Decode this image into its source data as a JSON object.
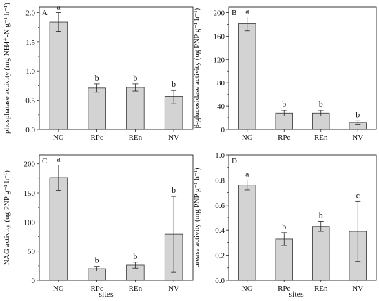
{
  "figure": {
    "shared_xlabel": "sites"
  },
  "chart_data": [
    {
      "panel": "A",
      "type": "bar",
      "categories": [
        "NG",
        "RPc",
        "REn",
        "NV"
      ],
      "values": [
        1.84,
        0.71,
        0.72,
        0.56
      ],
      "errors": [
        0.16,
        0.07,
        0.06,
        0.11
      ],
      "letters": [
        "a",
        "b",
        "b",
        "b"
      ],
      "ylabel": "phosphatase activity (mg NH4⁺-N g⁻¹ h⁻¹)",
      "ylim": [
        0,
        2.1
      ],
      "yticks": [
        0.0,
        0.5,
        1.0,
        1.5,
        2.0
      ],
      "ytick_labels": [
        "0.0",
        "0.5",
        "1.0",
        "1.5",
        "2.0"
      ],
      "xlabel": "",
      "bar_color": "#d3d3d3"
    },
    {
      "panel": "B",
      "type": "bar",
      "categories": [
        "NG",
        "RPc",
        "REn",
        "NV"
      ],
      "values": [
        181,
        28,
        28,
        12
      ],
      "errors": [
        12,
        5,
        5,
        3
      ],
      "letters": [
        "a",
        "b",
        "b",
        "b"
      ],
      "ylabel": "β-glucosidase activity (ug PNP g⁻¹ h⁻¹)",
      "ylim": [
        0,
        210
      ],
      "yticks": [
        0,
        40,
        80,
        120,
        160,
        200
      ],
      "ytick_labels": [
        "0",
        "40",
        "80",
        "120",
        "160",
        "200"
      ],
      "xlabel": "",
      "bar_color": "#d3d3d3"
    },
    {
      "panel": "C",
      "type": "bar",
      "categories": [
        "NG",
        "RPc",
        "REn",
        "NV"
      ],
      "values": [
        176,
        20,
        26,
        79
      ],
      "errors": [
        22,
        4,
        5,
        65
      ],
      "letters": [
        "a",
        "b",
        "b",
        "b"
      ],
      "ylabel": "NAG activity (ug PNP g⁻¹ h⁻¹)",
      "ylim": [
        0,
        215
      ],
      "yticks": [
        0,
        50,
        100,
        150,
        200
      ],
      "ytick_labels": [
        "0",
        "50",
        "100",
        "150",
        "200"
      ],
      "xlabel": "",
      "bar_color": "#d3d3d3"
    },
    {
      "panel": "D",
      "type": "bar",
      "categories": [
        "NG",
        "RPc",
        "REn",
        "NV"
      ],
      "values": [
        0.76,
        0.33,
        0.43,
        0.39
      ],
      "errors": [
        0.04,
        0.05,
        0.04,
        0.24
      ],
      "letters": [
        "a",
        "b",
        "b",
        "c"
      ],
      "ylabel": "urease activity (mg PNP g⁻¹ h⁻¹)",
      "ylim": [
        0,
        1.0
      ],
      "yticks": [
        0.0,
        0.2,
        0.4,
        0.6,
        0.8,
        1.0
      ],
      "ytick_labels": [
        "0.0",
        "0.2",
        "0.4",
        "0.6",
        "0.8",
        "1.0"
      ],
      "xlabel": "",
      "bar_color": "#d3d3d3"
    }
  ]
}
